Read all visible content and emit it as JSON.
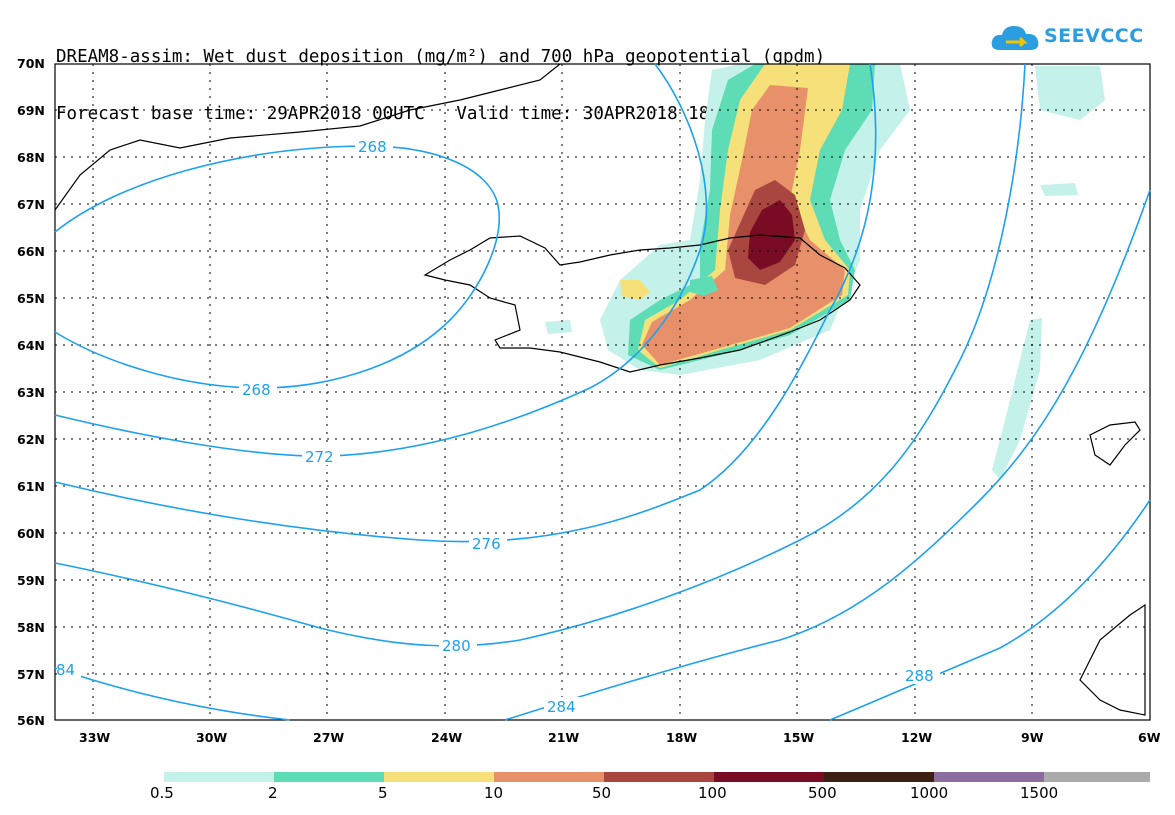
{
  "header": {
    "line1": "DREAM8-assim: Wet dust deposition (mg/m²) and 700 hPa geopotential (gpdm)",
    "line2": "Forecast base time: 29APR2018 00UTC   Valid time: 30APR2018 18UTC"
  },
  "logo": {
    "text": "SEEVCCC"
  },
  "axes": {
    "lat_labels": [
      "70N",
      "69N",
      "68N",
      "67N",
      "66N",
      "65N",
      "64N",
      "63N",
      "62N",
      "61N",
      "60N",
      "59N",
      "58N",
      "57N",
      "56N"
    ],
    "lon_labels": [
      "33W",
      "30W",
      "27W",
      "24W",
      "21W",
      "18W",
      "15W",
      "12W",
      "9W",
      "6W"
    ]
  },
  "contours": {
    "color": "#1da1ef",
    "labels": [
      "268",
      "268",
      "272",
      "276",
      "280",
      "284",
      "288",
      "84"
    ]
  },
  "colorbar": {
    "colors": [
      "#c4f1ea",
      "#5ddcb5",
      "#f5e07a",
      "#e8906a",
      "#a8463f",
      "#7a0b24",
      "#3a1f12",
      "#8a6d9e",
      "#aaaaaa"
    ],
    "labels": [
      "0.5",
      "2",
      "5",
      "10",
      "50",
      "100",
      "500",
      "1000",
      "1500"
    ]
  }
}
